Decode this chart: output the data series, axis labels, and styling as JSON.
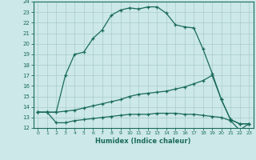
{
  "xlabel": "Humidex (Indice chaleur)",
  "bg_color": "#cce8e8",
  "grid_color": "#aacccc",
  "line_color": "#1a6b5a",
  "xlim": [
    -0.5,
    23.5
  ],
  "ylim": [
    12,
    24
  ],
  "xticks": [
    0,
    1,
    2,
    3,
    4,
    5,
    6,
    7,
    8,
    9,
    10,
    11,
    12,
    13,
    14,
    15,
    16,
    17,
    18,
    19,
    20,
    21,
    22,
    23
  ],
  "yticks": [
    12,
    13,
    14,
    15,
    16,
    17,
    18,
    19,
    20,
    21,
    22,
    23,
    24
  ],
  "line1_x": [
    0,
    1,
    2,
    3,
    4,
    5,
    6,
    7,
    8,
    9,
    10,
    11,
    12,
    13,
    14,
    15,
    16,
    17,
    18,
    19,
    20,
    21,
    22,
    23
  ],
  "line1_y": [
    13.5,
    13.5,
    13.5,
    17.0,
    19.0,
    19.2,
    20.5,
    21.3,
    22.7,
    23.2,
    23.4,
    23.3,
    23.5,
    23.5,
    22.9,
    21.8,
    21.6,
    21.5,
    19.5,
    17.2,
    14.7,
    12.8,
    12.4,
    12.4
  ],
  "line2_x": [
    0,
    1,
    2,
    3,
    4,
    5,
    6,
    7,
    8,
    9,
    10,
    11,
    12,
    13,
    14,
    15,
    16,
    17,
    18,
    19,
    20,
    21,
    22,
    23
  ],
  "line2_y": [
    13.5,
    13.5,
    13.5,
    13.6,
    13.7,
    13.9,
    14.1,
    14.3,
    14.5,
    14.7,
    15.0,
    15.2,
    15.3,
    15.4,
    15.5,
    15.7,
    15.9,
    16.2,
    16.5,
    17.0,
    14.7,
    12.8,
    12.4,
    12.4
  ],
  "line3_x": [
    0,
    1,
    2,
    3,
    4,
    5,
    6,
    7,
    8,
    9,
    10,
    11,
    12,
    13,
    14,
    15,
    16,
    17,
    18,
    19,
    20,
    21,
    22,
    23
  ],
  "line3_y": [
    13.5,
    13.5,
    12.5,
    12.5,
    12.7,
    12.8,
    12.9,
    13.0,
    13.1,
    13.2,
    13.3,
    13.3,
    13.3,
    13.4,
    13.4,
    13.4,
    13.3,
    13.3,
    13.2,
    13.1,
    13.0,
    12.7,
    11.8,
    12.4
  ]
}
